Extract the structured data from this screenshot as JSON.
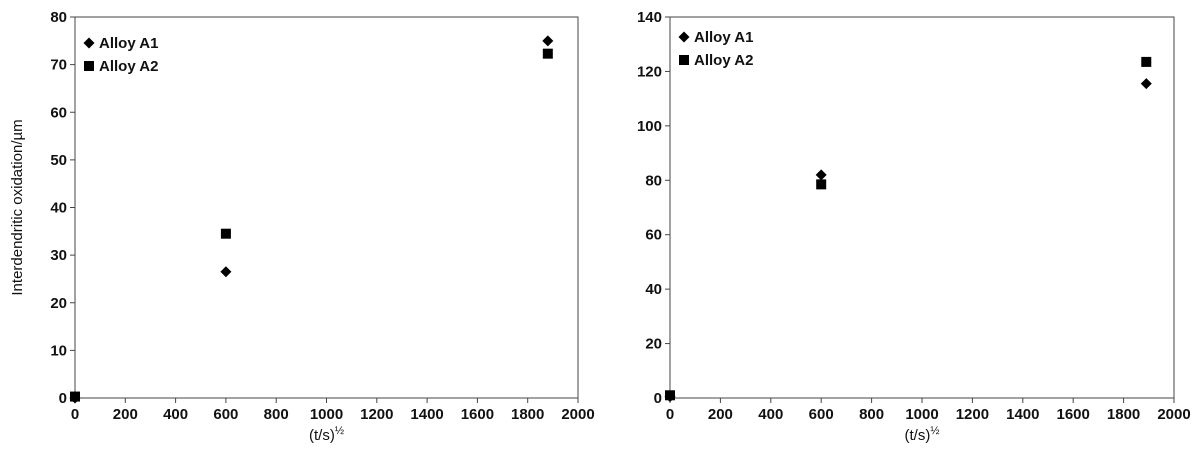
{
  "chart_data": [
    {
      "type": "scatter",
      "title": "",
      "xlabel": "(t/s)",
      "xlabel_sup": "½",
      "ylabel": "Interdendritic oxidation/µm",
      "xlim": [
        0,
        2000
      ],
      "ylim": [
        0,
        80
      ],
      "xticks": [
        0,
        200,
        400,
        600,
        800,
        1000,
        1200,
        1400,
        1600,
        1800,
        2000
      ],
      "yticks": [
        0,
        10,
        20,
        30,
        40,
        50,
        60,
        70,
        80
      ],
      "grid": false,
      "legend_position": "top-left",
      "series": [
        {
          "name": "Alloy A1",
          "marker": "diamond",
          "color": "#000000",
          "points": [
            [
              0,
              0
            ],
            [
              600,
              26.5
            ],
            [
              1880,
              75
            ]
          ]
        },
        {
          "name": "Alloy A2",
          "marker": "square",
          "color": "#000000",
          "points": [
            [
              0,
              0.3
            ],
            [
              600,
              34.5
            ],
            [
              1880,
              72.3
            ]
          ]
        }
      ]
    },
    {
      "type": "scatter",
      "title": "",
      "xlabel": "(t/s)",
      "xlabel_sup": "½",
      "ylabel": "",
      "xlim": [
        0,
        2000
      ],
      "ylim": [
        0,
        140
      ],
      "xticks": [
        0,
        200,
        400,
        600,
        800,
        1000,
        1200,
        1400,
        1600,
        1800,
        2000
      ],
      "yticks": [
        0,
        20,
        40,
        60,
        80,
        100,
        120,
        140
      ],
      "grid": false,
      "legend_position": "top-left",
      "series": [
        {
          "name": "Alloy A1",
          "marker": "diamond",
          "color": "#000000",
          "points": [
            [
              0,
              0.5
            ],
            [
              600,
              82
            ],
            [
              1890,
              115.5
            ]
          ]
        },
        {
          "name": "Alloy A2",
          "marker": "square",
          "color": "#000000",
          "points": [
            [
              0,
              1
            ],
            [
              600,
              78.5
            ],
            [
              1890,
              123.5
            ]
          ]
        }
      ]
    }
  ]
}
